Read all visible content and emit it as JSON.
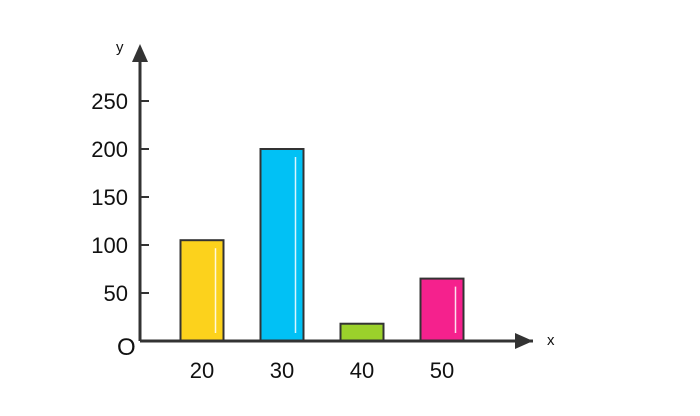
{
  "chart_data": {
    "type": "bar",
    "categories": [
      "20",
      "30",
      "40",
      "50"
    ],
    "values": [
      105,
      200,
      18,
      65
    ],
    "colors": [
      "#fcd21c",
      "#01c1f5",
      "#9bd12b",
      "#f5218d"
    ],
    "xlabel": "x",
    "ylabel": "y",
    "origin_label": "O",
    "ylim": [
      0,
      270
    ],
    "yticks": [
      50,
      100,
      150,
      200,
      250
    ],
    "grid": false
  }
}
